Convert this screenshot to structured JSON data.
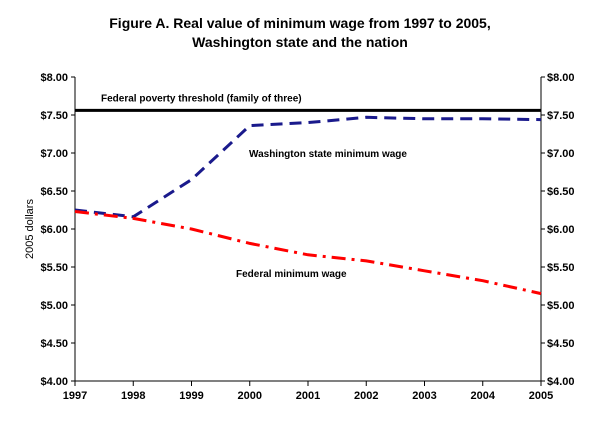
{
  "chart_data": {
    "type": "line",
    "title_line1": "Figure A. Real value of minimum wage from 1997 to 2005,",
    "title_line2": "Washington state and the nation",
    "ylabel": "2005 dollars",
    "xlabel": "",
    "x": [
      1997,
      1998,
      1999,
      2000,
      2001,
      2002,
      2003,
      2004,
      2005
    ],
    "ylim": [
      4.0,
      8.0
    ],
    "yticks": [
      "$4.00",
      "$4.50",
      "$5.00",
      "$5.50",
      "$6.00",
      "$6.50",
      "$7.00",
      "$7.50",
      "$8.00"
    ],
    "ytick_values": [
      4.0,
      4.5,
      5.0,
      5.5,
      6.0,
      6.5,
      7.0,
      7.5,
      8.0
    ],
    "grid": false,
    "series": [
      {
        "name": "Federal poverty threshold (family of three)",
        "values": [
          7.56,
          7.56,
          7.56,
          7.56,
          7.56,
          7.56,
          7.56,
          7.56,
          7.56
        ],
        "color": "#000000",
        "style": "solid"
      },
      {
        "name": "Washington state minimum wage",
        "values": [
          6.25,
          6.16,
          6.65,
          7.36,
          7.4,
          7.47,
          7.45,
          7.45,
          7.44
        ],
        "color": "#1a1a8c",
        "style": "dashed"
      },
      {
        "name": "Federal minimum wage",
        "values": [
          6.23,
          6.14,
          6.0,
          5.81,
          5.66,
          5.58,
          5.45,
          5.32,
          5.15
        ],
        "color": "#ff0000",
        "style": "dash-dot"
      }
    ]
  }
}
